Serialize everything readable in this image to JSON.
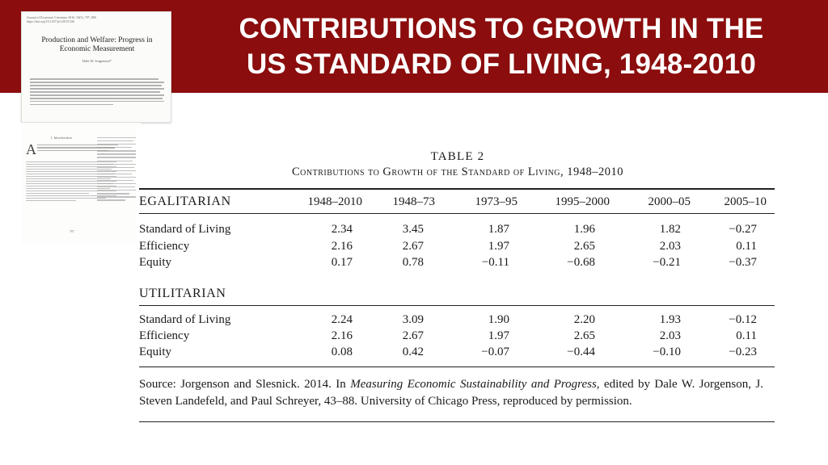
{
  "slide": {
    "title_line1": "CONTRIBUTIONS TO GROWTH IN THE",
    "title_line2": "US STANDARD OF LIVING, 1948-2010",
    "colors": {
      "banner": "#8b0d0d",
      "title_text": "#ffffff"
    }
  },
  "paper": {
    "journal": "Journal of Economic Literature 2016, 54(3), 707–800\nhttps://doi.org/10.1257/jel.20151336",
    "title": "Production and Welfare: Progress in\nEconomic Measurement",
    "author": "Dale W. Jorgenson*",
    "section_heading": "1.  Introduction",
    "dropcap": "A",
    "page_number": "707"
  },
  "table": {
    "caption": "TABLE 2",
    "title": "Contributions to Growth of the Standard of Living, 1948–2010",
    "columns": [
      "1948–2010",
      "1948–73",
      "1973–95",
      "1995–2000",
      "2000–05",
      "2005–10"
    ],
    "sections": [
      {
        "name": "EGALITARIAN",
        "rows": [
          {
            "label": "Standard of Living",
            "values": [
              "2.34",
              "3.45",
              "1.87",
              "1.96",
              "1.82",
              "−0.27"
            ]
          },
          {
            "label": "Efficiency",
            "values": [
              "2.16",
              "2.67",
              "1.97",
              "2.65",
              "2.03",
              "0.11"
            ]
          },
          {
            "label": "Equity",
            "values": [
              "0.17",
              "0.78",
              "−0.11",
              "−0.68",
              "−0.21",
              "−0.37"
            ]
          }
        ]
      },
      {
        "name": "UTILITARIAN",
        "rows": [
          {
            "label": "Standard of Living",
            "values": [
              "2.24",
              "3.09",
              "1.90",
              "2.20",
              "1.93",
              "−0.12"
            ]
          },
          {
            "label": "Efficiency",
            "values": [
              "2.16",
              "2.67",
              "1.97",
              "2.65",
              "2.03",
              "0.11"
            ]
          },
          {
            "label": "Equity",
            "values": [
              "0.08",
              "0.42",
              "−0.07",
              "−0.44",
              "−0.10",
              "−0.23"
            ]
          }
        ]
      }
    ],
    "source_prefix": "Source: Jorgenson and Slesnick. 2014. In ",
    "source_title": "Measuring Economic Sustainability and Progress",
    "source_suffix": ", edited by Dale W. Jorgenson, J. Steven Landefeld, and Paul Schreyer, 43–88. University of Chicago Press, reproduced by permission."
  }
}
